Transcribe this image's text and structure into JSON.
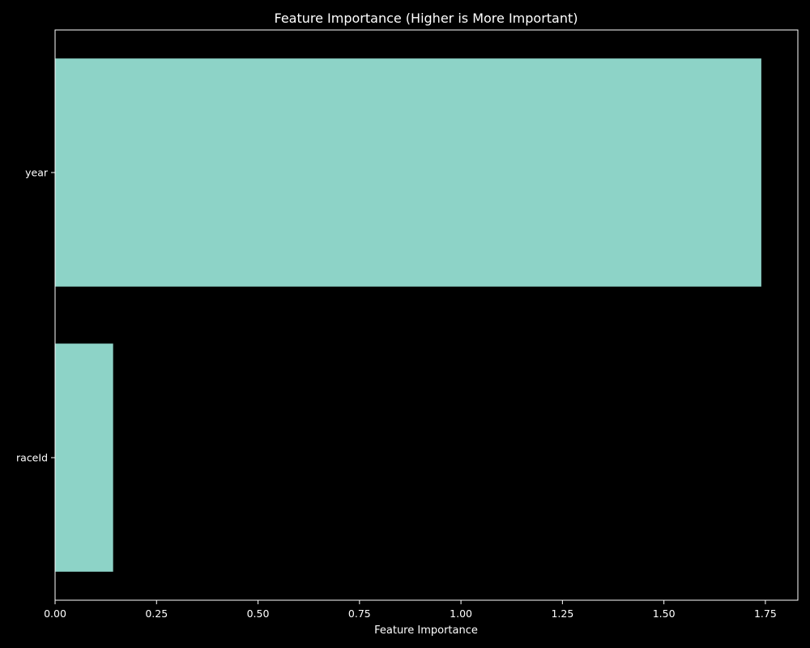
{
  "chart_data": {
    "type": "bar",
    "orientation": "horizontal",
    "title": "Feature Importance (Higher is More Important)",
    "xlabel": "Feature Importance",
    "ylabel": "",
    "categories": [
      "year",
      "raceId"
    ],
    "values": [
      1.74,
      0.143
    ],
    "xlim": [
      0,
      1.83
    ],
    "xticks": [
      "0.00",
      "0.25",
      "0.50",
      "0.75",
      "1.00",
      "1.25",
      "1.50",
      "1.75"
    ],
    "grid": false,
    "legend": "none",
    "colors": {
      "background": "#000000",
      "bar": "#8dd3c7",
      "axis": "#ffffff",
      "text": "#ffffff"
    }
  }
}
